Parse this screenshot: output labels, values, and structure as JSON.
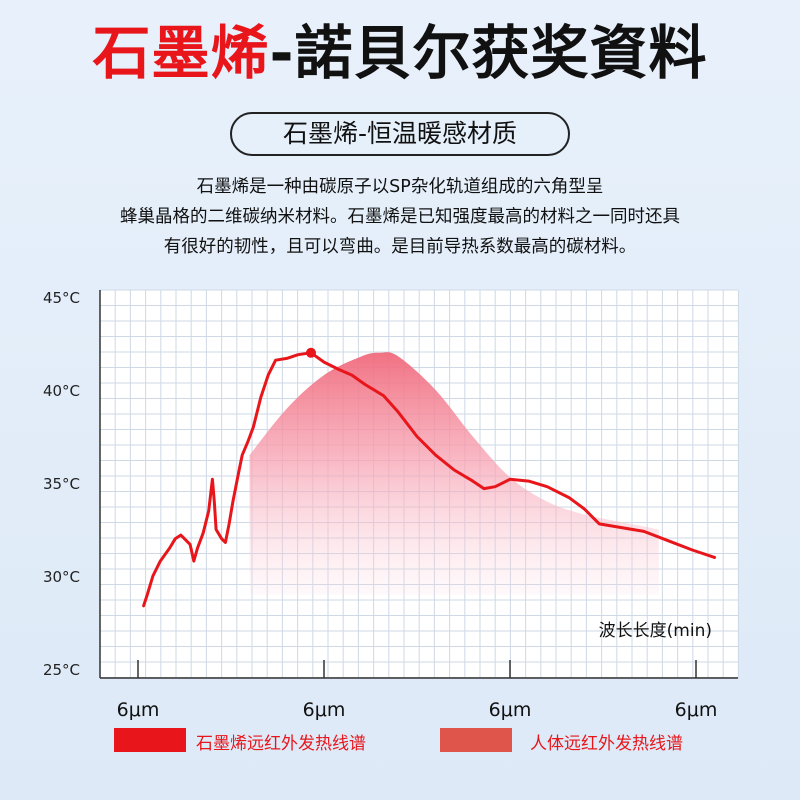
{
  "header": {
    "title_red": "石墨烯",
    "title_dark": "-諾貝尔获奖資料",
    "subtitle": "石墨烯-恒温暖感材质"
  },
  "description": [
    "石墨烯是一种由碳原子以SP杂化轨道组成的六角型呈",
    "蜂巢晶格的二维碳纳米材料。石墨烯是已知强度最高的材料之一同时还具",
    "有很好的韧性，且可以弯曲。是目前导热系数最高的碳材料。"
  ],
  "chart_data": {
    "type": "line",
    "ylim": [
      25,
      45
    ],
    "yticks": [
      "45°C",
      "40°C",
      "35°C",
      "30°C",
      "25°C"
    ],
    "ytick_values": [
      45,
      40,
      35,
      30,
      25
    ],
    "xticks": [
      "6μm",
      "6μm",
      "6μm",
      "6μm"
    ],
    "xtick_positions": [
      0,
      1,
      2,
      3
    ],
    "xlim": [
      -0.2,
      3.2
    ],
    "xlabel": "波长长度(min)",
    "grid": true,
    "legend_placement": "bottom",
    "series": [
      {
        "name": "石墨烯远红外发热线谱",
        "color": "#e8161b",
        "points": [
          [
            0.03,
            28.4
          ],
          [
            0.05,
            29.0
          ],
          [
            0.08,
            30.0
          ],
          [
            0.12,
            30.8
          ],
          [
            0.17,
            31.5
          ],
          [
            0.2,
            32.0
          ],
          [
            0.23,
            32.2
          ],
          [
            0.26,
            31.9
          ],
          [
            0.28,
            31.7
          ],
          [
            0.3,
            30.8
          ],
          [
            0.32,
            31.5
          ],
          [
            0.35,
            32.3
          ],
          [
            0.38,
            33.5
          ],
          [
            0.4,
            35.2
          ],
          [
            0.41,
            34.0
          ],
          [
            0.42,
            32.5
          ],
          [
            0.45,
            32.0
          ],
          [
            0.47,
            31.8
          ],
          [
            0.49,
            32.8
          ],
          [
            0.51,
            34.0
          ],
          [
            0.54,
            35.5
          ],
          [
            0.56,
            36.5
          ],
          [
            0.59,
            37.2
          ],
          [
            0.62,
            38.0
          ],
          [
            0.66,
            39.6
          ],
          [
            0.7,
            40.8
          ],
          [
            0.74,
            41.6
          ],
          [
            0.8,
            41.7
          ],
          [
            0.86,
            41.9
          ],
          [
            0.93,
            42.0
          ],
          [
            1.0,
            41.5
          ],
          [
            1.08,
            41.1
          ],
          [
            1.15,
            40.8
          ],
          [
            1.22,
            40.3
          ],
          [
            1.32,
            39.7
          ],
          [
            1.4,
            38.8
          ],
          [
            1.5,
            37.5
          ],
          [
            1.6,
            36.5
          ],
          [
            1.7,
            35.7
          ],
          [
            1.8,
            35.1
          ],
          [
            1.86,
            34.7
          ],
          [
            1.92,
            34.8
          ],
          [
            2.0,
            35.2
          ],
          [
            2.1,
            35.1
          ],
          [
            2.2,
            34.8
          ],
          [
            2.32,
            34.2
          ],
          [
            2.4,
            33.6
          ],
          [
            2.48,
            32.8
          ],
          [
            2.6,
            32.6
          ],
          [
            2.72,
            32.4
          ],
          [
            2.85,
            31.9
          ],
          [
            2.98,
            31.4
          ],
          [
            3.1,
            31.0
          ]
        ]
      },
      {
        "name": "人体远红外发热线谱",
        "color": "#e0554b",
        "points": [
          [
            0.6,
            36.5
          ],
          [
            0.8,
            39.0
          ],
          [
            1.0,
            40.8
          ],
          [
            1.2,
            41.8
          ],
          [
            1.3,
            42.0
          ],
          [
            1.4,
            41.8
          ],
          [
            1.6,
            40.0
          ],
          [
            1.8,
            37.5
          ],
          [
            2.0,
            35.3
          ],
          [
            2.2,
            34.0
          ],
          [
            2.4,
            33.3
          ],
          [
            2.6,
            32.9
          ],
          [
            2.8,
            32.5
          ]
        ]
      }
    ]
  }
}
